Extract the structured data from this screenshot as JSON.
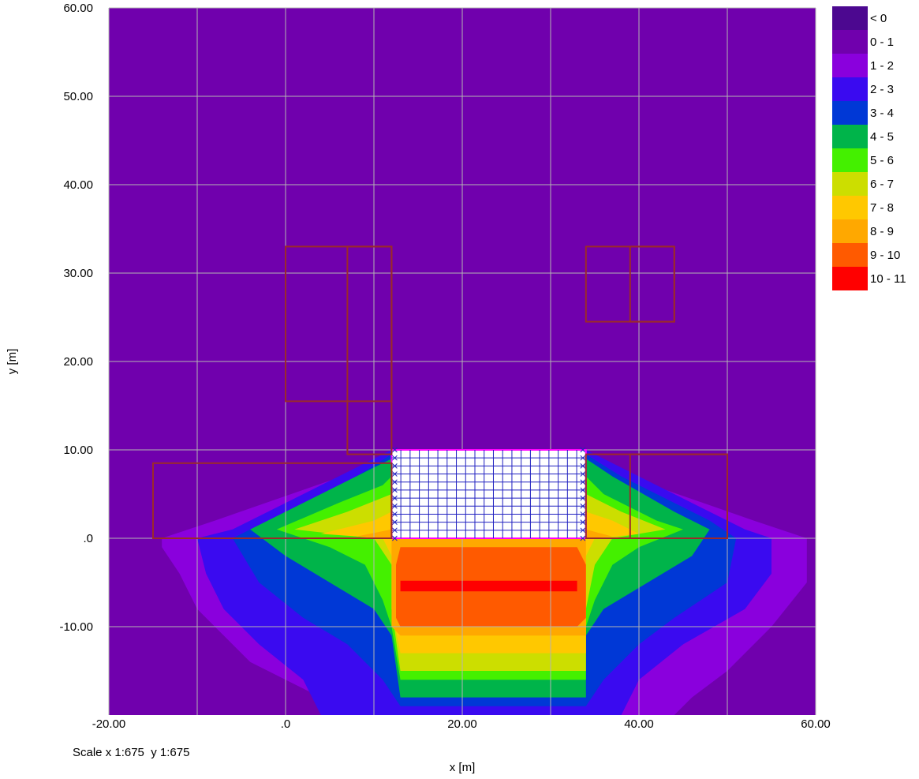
{
  "chart_data": {
    "type": "heatmap",
    "xlabel": "x [m]",
    "ylabel": "y [m]",
    "xlim": [
      -20,
      60
    ],
    "ylim": [
      -20,
      60
    ],
    "grid": true,
    "x_ticks": [
      -20,
      -10,
      0,
      10,
      20,
      30,
      40,
      50,
      60
    ],
    "y_ticks": [
      -10,
      0,
      10,
      20,
      30,
      40,
      50,
      60
    ],
    "x_tick_labels": [
      "-20.00",
      ".0",
      "20.00",
      "40.00",
      "60.00"
    ],
    "x_tick_label_values": [
      -20,
      0,
      20,
      40,
      60
    ],
    "y_tick_labels": [
      "-10.00",
      ".0",
      "10.00",
      "20.00",
      "30.00",
      "40.00",
      "50.00",
      "60.00"
    ],
    "y_tick_label_values": [
      -10,
      0,
      10,
      20,
      30,
      40,
      50,
      60
    ],
    "legend_position": "right",
    "legend": [
      {
        "label": "< 0",
        "color": "#4c0890"
      },
      {
        "label": "0 - 1",
        "color": "#7000ad"
      },
      {
        "label": "1 - 2",
        "color": "#8a00dd"
      },
      {
        "label": "2 - 3",
        "color": "#3a0af0"
      },
      {
        "label": "3 - 4",
        "color": "#0038d6"
      },
      {
        "label": "4 - 5",
        "color": "#00b44a"
      },
      {
        "label": "5 - 6",
        "color": "#44f000"
      },
      {
        "label": "6 - 7",
        "color": "#ccde00"
      },
      {
        "label": "7 - 8",
        "color": "#ffc800"
      },
      {
        "label": "8 - 9",
        "color": "#ffa800"
      },
      {
        "label": "9 - 10",
        "color": "#ff5a00"
      },
      {
        "label": "10 - 11",
        "color": "#ff0000"
      }
    ],
    "contour_bands": [
      {
        "level": "1 - 2",
        "polygon": [
          [
            -14,
            0
          ],
          [
            -8,
            2
          ],
          [
            15,
            10
          ],
          [
            30,
            10
          ],
          [
            53,
            2
          ],
          [
            59,
            0
          ],
          [
            59,
            -5
          ],
          [
            55,
            -10
          ],
          [
            50,
            -15
          ],
          [
            46,
            -18
          ],
          [
            44,
            -20
          ],
          [
            8,
            -20
          ],
          [
            4,
            -18
          ],
          [
            -4,
            -14
          ],
          [
            -10,
            -8
          ],
          [
            -12,
            -4
          ],
          [
            -14,
            -1
          ]
        ]
      },
      {
        "level": "2 - 3",
        "polygon": [
          [
            -10,
            0
          ],
          [
            -6,
            1
          ],
          [
            0,
            4
          ],
          [
            12,
            10
          ],
          [
            34,
            10
          ],
          [
            46,
            4
          ],
          [
            52,
            1
          ],
          [
            55,
            0
          ],
          [
            55,
            -4
          ],
          [
            52,
            -8
          ],
          [
            45,
            -12
          ],
          [
            40,
            -16
          ],
          [
            38,
            -20
          ],
          [
            4,
            -20
          ],
          [
            2,
            -16
          ],
          [
            -3,
            -12
          ],
          [
            -7,
            -8
          ],
          [
            -9,
            -4
          ]
        ]
      },
      {
        "level": "3 - 4",
        "polygon": [
          [
            -6,
            0
          ],
          [
            -2,
            2
          ],
          [
            8,
            7
          ],
          [
            12,
            9.5
          ],
          [
            34,
            9.5
          ],
          [
            38,
            7
          ],
          [
            48,
            2
          ],
          [
            51,
            0
          ],
          [
            50,
            -5
          ],
          [
            44,
            -9
          ],
          [
            40,
            -12
          ],
          [
            36,
            -16
          ],
          [
            34,
            -19
          ],
          [
            13,
            -19
          ],
          [
            11,
            -16
          ],
          [
            7,
            -12
          ],
          [
            2,
            -9
          ],
          [
            -3,
            -5
          ]
        ]
      },
      {
        "level": "4 - 5",
        "polygon": [
          [
            -4,
            1
          ],
          [
            4,
            5
          ],
          [
            10,
            8
          ],
          [
            12,
            9
          ],
          [
            34,
            9
          ],
          [
            37,
            7
          ],
          [
            44,
            3
          ],
          [
            48,
            1
          ],
          [
            46,
            -2
          ],
          [
            41,
            -5
          ],
          [
            36,
            -8
          ],
          [
            34,
            -11
          ],
          [
            34,
            -18
          ],
          [
            13,
            -18
          ],
          [
            12,
            -11
          ],
          [
            10,
            -8
          ],
          [
            5,
            -5
          ],
          [
            0,
            -2
          ]
        ]
      },
      {
        "level": "5 - 6",
        "polygon": [
          [
            -1,
            1
          ],
          [
            6,
            4
          ],
          [
            11,
            6
          ],
          [
            12,
            7
          ],
          [
            34,
            7
          ],
          [
            36,
            5
          ],
          [
            42,
            2
          ],
          [
            45,
            1
          ],
          [
            40,
            -1
          ],
          [
            37,
            -3
          ],
          [
            35,
            -7
          ],
          [
            34,
            -10
          ],
          [
            34,
            -16
          ],
          [
            13,
            -16
          ],
          [
            12,
            -10
          ],
          [
            11,
            -7
          ],
          [
            9,
            -3
          ],
          [
            5,
            -1
          ]
        ]
      },
      {
        "level": "6 - 7",
        "polygon": [
          [
            1,
            1
          ],
          [
            7,
            3
          ],
          [
            12,
            5
          ],
          [
            34,
            5
          ],
          [
            38,
            3
          ],
          [
            43,
            1
          ],
          [
            37,
            0
          ],
          [
            35,
            -3
          ],
          [
            34,
            -8
          ],
          [
            34,
            -15
          ],
          [
            13,
            -15
          ],
          [
            12,
            -8
          ],
          [
            12,
            -3
          ],
          [
            10,
            0
          ]
        ]
      },
      {
        "level": "7 - 8",
        "polygon": [
          [
            4,
            0.5
          ],
          [
            10,
            2
          ],
          [
            12,
            3
          ],
          [
            34,
            3
          ],
          [
            37,
            2
          ],
          [
            40,
            0.5
          ],
          [
            35,
            0
          ],
          [
            34,
            -2
          ],
          [
            34,
            -8
          ],
          [
            34,
            -13
          ],
          [
            13,
            -13
          ],
          [
            12,
            -8
          ],
          [
            12,
            -2
          ],
          [
            11,
            0
          ]
        ]
      },
      {
        "level": "8 - 9",
        "polygon": [
          [
            8,
            0.2
          ],
          [
            12,
            1
          ],
          [
            34,
            1
          ],
          [
            37,
            0.2
          ],
          [
            34,
            0
          ],
          [
            34,
            -10
          ],
          [
            34,
            -11
          ],
          [
            13,
            -11
          ],
          [
            12,
            -10
          ],
          [
            12,
            0
          ]
        ]
      },
      {
        "level": "9 - 10",
        "polygon": [
          [
            13,
            -1
          ],
          [
            33,
            -1
          ],
          [
            34,
            -3
          ],
          [
            34,
            -9
          ],
          [
            33,
            -10
          ],
          [
            13,
            -10
          ],
          [
            12.5,
            -9
          ],
          [
            12.5,
            -3
          ]
        ]
      },
      {
        "level": "10 - 11",
        "polygon": [
          [
            13,
            -4.8
          ],
          [
            33,
            -4.8
          ],
          [
            33,
            -6
          ],
          [
            13,
            -6
          ]
        ]
      }
    ],
    "excavation_grid": {
      "x": [
        12,
        34
      ],
      "y": [
        0,
        10
      ]
    },
    "outlines": [
      {
        "x": [
          0,
          12
        ],
        "y": [
          15.5,
          33
        ]
      },
      {
        "x": [
          7,
          12
        ],
        "y": [
          9.5,
          33
        ]
      },
      {
        "x": [
          -15,
          12
        ],
        "y": [
          0,
          8.5
        ]
      },
      {
        "x": [
          34,
          44
        ],
        "y": [
          24.5,
          33
        ]
      },
      {
        "x": [
          39,
          44
        ],
        "y": [
          24.5,
          33
        ]
      },
      {
        "x": [
          34,
          50
        ],
        "y": [
          0,
          9.5
        ]
      },
      {
        "x": [
          39,
          50
        ],
        "y": [
          0,
          9.5
        ]
      }
    ]
  },
  "footer": {
    "scale": "Scale x 1:675  y 1:675"
  }
}
